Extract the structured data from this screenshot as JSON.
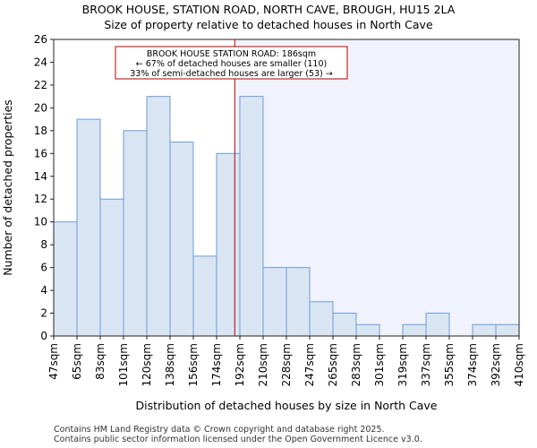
{
  "header": {
    "title": "BROOK HOUSE, STATION ROAD, NORTH CAVE, BROUGH, HU15 2LA",
    "subtitle": "Size of property relative to detached houses in North Cave"
  },
  "footer": {
    "line1": "Contains HM Land Registry data © Crown copyright and database right 2025.",
    "line2": "Contains public sector information licensed under the Open Government Licence v3.0."
  },
  "chart_data": {
    "type": "bar",
    "title": "BROOK HOUSE, STATION ROAD, NORTH CAVE, BROUGH, HU15 2LA",
    "subtitle": "Size of property relative to detached houses in North Cave",
    "xlabel": "Distribution of detached houses by size in North Cave",
    "ylabel": "Number of detached properties",
    "bin_edges": [
      "47sqm",
      "65sqm",
      "83sqm",
      "101sqm",
      "120sqm",
      "138sqm",
      "156sqm",
      "174sqm",
      "192sqm",
      "210sqm",
      "228sqm",
      "247sqm",
      "265sqm",
      "283sqm",
      "301sqm",
      "319sqm",
      "337sqm",
      "355sqm",
      "374sqm",
      "392sqm",
      "410sqm"
    ],
    "values": [
      10,
      19,
      12,
      18,
      21,
      17,
      7,
      16,
      21,
      6,
      6,
      3,
      2,
      1,
      0,
      1,
      2,
      0,
      1,
      1
    ],
    "ylim": [
      0,
      26
    ],
    "yticks": [
      0,
      2,
      4,
      6,
      8,
      10,
      12,
      14,
      16,
      18,
      20,
      22,
      24,
      26
    ],
    "grid": false,
    "colors": {
      "bar_fill": "#dae5f4",
      "bar_edge": "#6f9bd1",
      "shade": "#f0f3fb",
      "marker_line": "#b80000",
      "annotation_border": "#b80000"
    },
    "marker": {
      "value_sqm": 186,
      "bin_position": 7.78
    },
    "annotation": {
      "lines": [
        "BROOK HOUSE STATION ROAD: 186sqm",
        "← 67% of detached houses are smaller (110)",
        "33% of semi-detached houses are larger (53) →"
      ]
    }
  }
}
